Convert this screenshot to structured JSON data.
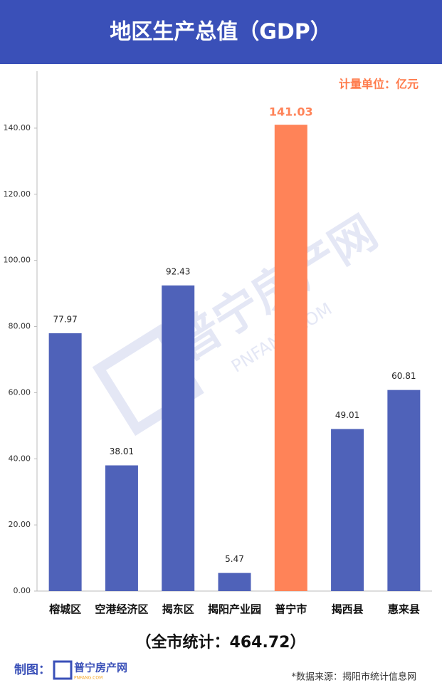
{
  "chart_data": {
    "type": "bar",
    "title": "地区生产总值（GDP）",
    "unit": "计量单位：亿元",
    "categories": [
      "榕城区",
      "空港经济区",
      "揭东区",
      "揭阳产业园",
      "普宁市",
      "揭西县",
      "惠来县"
    ],
    "values": [
      77.97,
      38.01,
      92.43,
      5.47,
      141.03,
      49.01,
      60.81
    ],
    "colors": [
      "#4f62b9",
      "#4f62b9",
      "#4f62b9",
      "#4f62b9",
      "#ff8358",
      "#4f62b9",
      "#4f62b9"
    ],
    "ylim": [
      0,
      157
    ],
    "yticks": [
      {
        "value": 0,
        "label": "0.00"
      },
      {
        "value": 20,
        "label": "20.00"
      },
      {
        "value": 40,
        "label": "40.00"
      },
      {
        "value": 60,
        "label": "60.00"
      },
      {
        "value": 80,
        "label": "80.00"
      },
      {
        "value": 100,
        "label": "100.00"
      },
      {
        "value": 120,
        "label": "120.00"
      },
      {
        "value": 140,
        "label": "140.00"
      }
    ],
    "grid": false,
    "summary": "（全市统计：464.72）",
    "maker_label": "制图：",
    "logo_text": "普宁房产网",
    "logo_url": "PNFANG.COM",
    "source": "*数据来源：揭阳市统计信息网"
  }
}
